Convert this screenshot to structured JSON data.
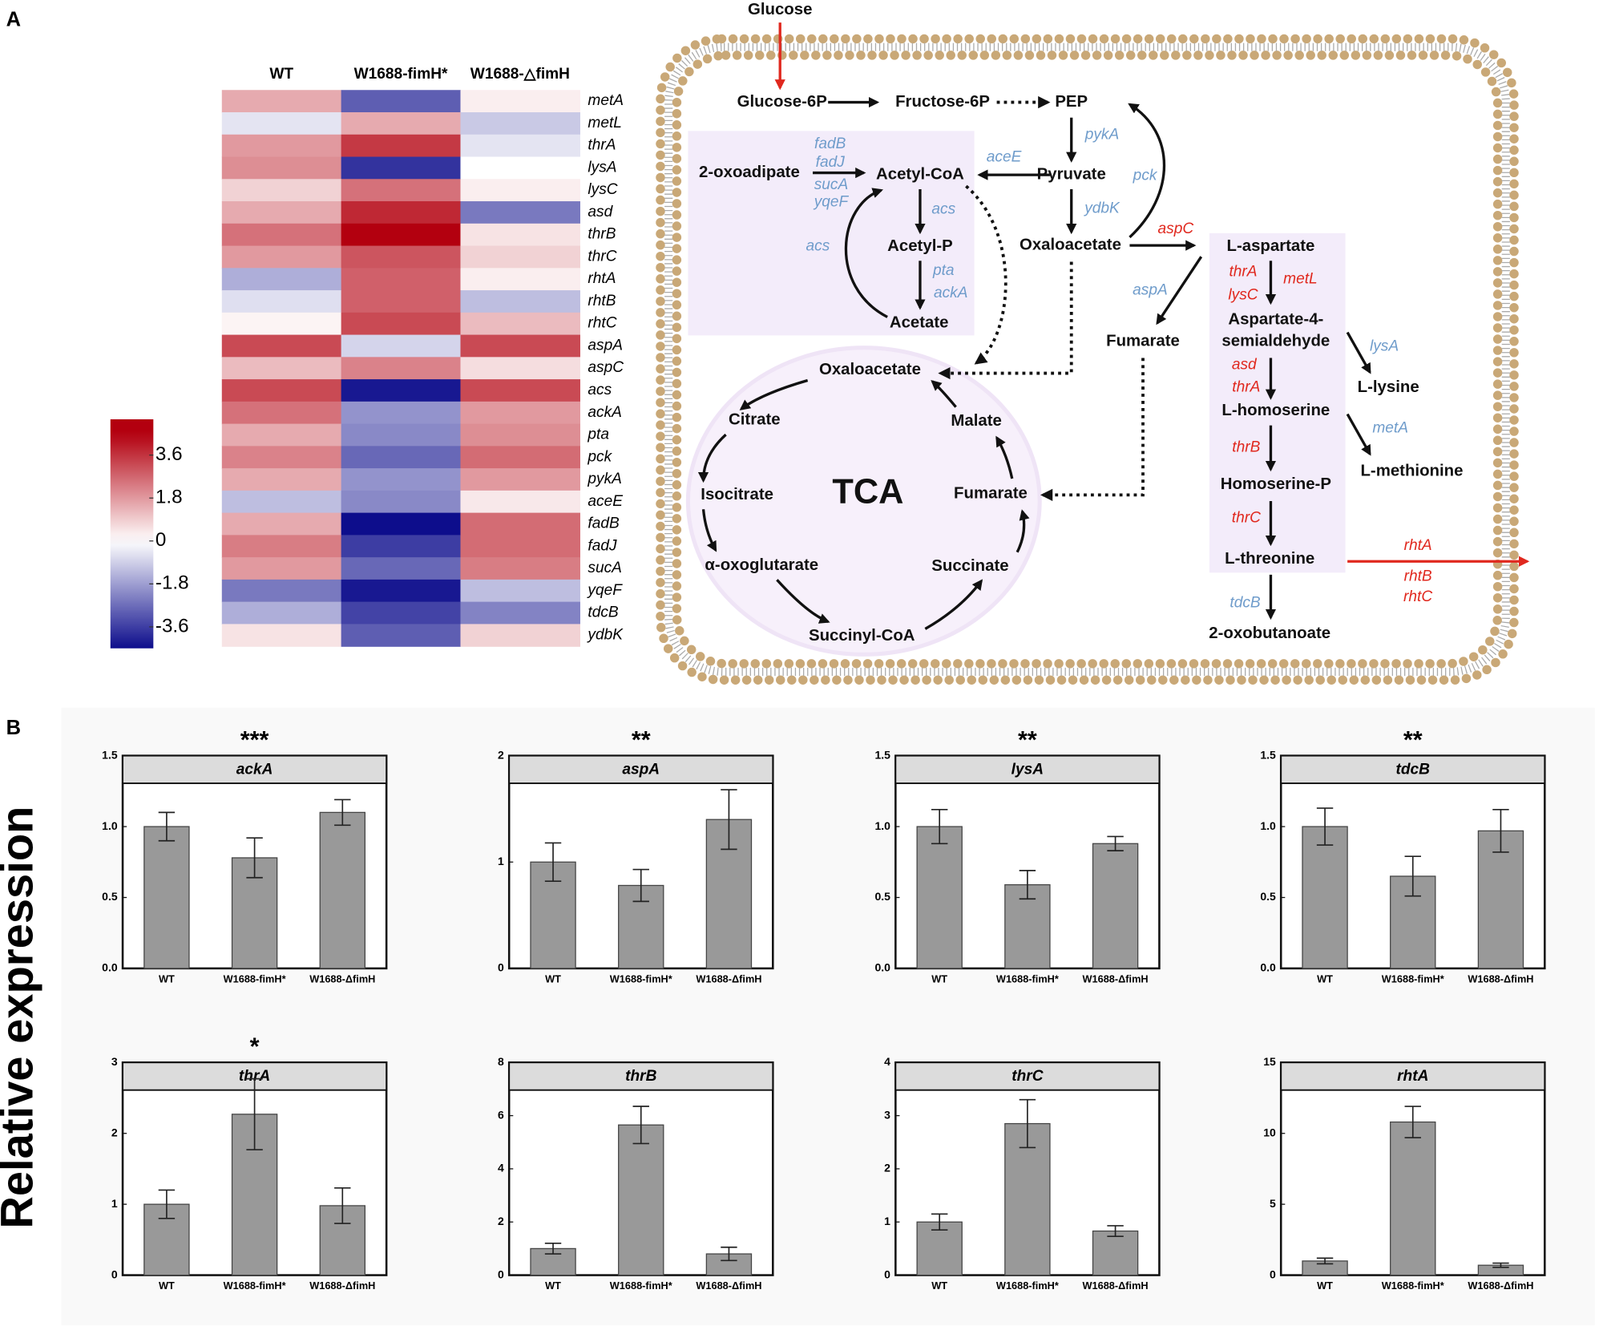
{
  "panels": [
    "A",
    "B"
  ],
  "y_label": "Relative expression",
  "diagram": {
    "tca": "TCA",
    "metabolites": [
      "Glucose",
      "Glucose-6P",
      "Fructose-6P",
      "PEP",
      "2-oxoadipate",
      "Acetyl-CoA",
      "Pyruvate",
      "Acetyl-P",
      "Oxaloacetate",
      "Acetate",
      "L-aspartate",
      "Aspartate-4-",
      "semialdehyde",
      "Fumarate",
      "L-lysine",
      "L-homoserine",
      "L-methionine",
      "Homoserine-P",
      "L-threonine",
      "2-oxobutanoate",
      "Oxaloacetate",
      "Citrate",
      "Malate",
      "Isocitrate",
      "Fumarate",
      "α-oxoglutarate",
      "Succinate",
      "Succinyl-CoA"
    ],
    "genes_down": [
      "fadB",
      "fadJ",
      "sucA",
      "yqeF",
      "aceE",
      "pykA",
      "pck",
      "ydbK",
      "acs",
      "acs",
      "pta",
      "ackA",
      "aspA",
      "lysA",
      "metA",
      "tdcB"
    ],
    "genes_up": [
      "aspC",
      "thrA",
      "metL",
      "lysC",
      "asd",
      "thrA",
      "thrB",
      "thrC",
      "rhtA",
      "rhtB",
      "rhtC"
    ]
  },
  "chart_data": [
    {
      "type": "heatmap",
      "x": [
        "WT",
        "W1688-fimH*",
        "W1688-△fimH"
      ],
      "y": [
        "metA",
        "metL",
        "thrA",
        "lysA",
        "lysC",
        "asd",
        "thrB",
        "thrC",
        "rhtA",
        "rhtB",
        "rhtC",
        "aspA",
        "aspC",
        "acs",
        "ackA",
        "pta",
        "pck",
        "pykA",
        "aceE",
        "fadB",
        "fadJ",
        "sucA",
        "yqeF",
        "tdcB",
        "ydbK"
      ],
      "z": [
        [
          1.5,
          -3.0,
          0.3
        ],
        [
          -0.5,
          1.5,
          -1.0
        ],
        [
          1.8,
          3.5,
          -0.5
        ],
        [
          2.0,
          -3.8,
          0
        ],
        [
          0.8,
          2.5,
          0.3
        ],
        [
          1.5,
          3.8,
          -2.5
        ],
        [
          2.5,
          4.5,
          0.5
        ],
        [
          1.8,
          3.0,
          0.8
        ],
        [
          -1.5,
          2.8,
          0.3
        ],
        [
          -0.6,
          2.8,
          -1.2
        ],
        [
          0.2,
          3.2,
          1.2
        ],
        [
          3.2,
          -0.8,
          3.2
        ],
        [
          1.2,
          2.2,
          0.6
        ],
        [
          3.2,
          -4.3,
          3.2
        ],
        [
          2.5,
          -2.0,
          1.8
        ],
        [
          1.5,
          -2.2,
          2.0
        ],
        [
          2.2,
          -2.8,
          2.6
        ],
        [
          1.5,
          -2.0,
          1.8
        ],
        [
          -1.2,
          -2.2,
          0.4
        ],
        [
          1.5,
          -4.5,
          2.6
        ],
        [
          2.3,
          -3.6,
          2.6
        ],
        [
          1.8,
          -2.8,
          2.3
        ],
        [
          -2.5,
          -4.3,
          -1.2
        ],
        [
          -1.5,
          -3.5,
          -2.3
        ],
        [
          0.5,
          -3.0,
          0.8
        ]
      ],
      "zlim": [
        -4.5,
        5.1
      ],
      "zticks": [
        3.6,
        1.8,
        0,
        -1.8,
        -3.6
      ],
      "colors": [
        "#0d0d8c",
        "#ffffff",
        "#b3000f"
      ]
    },
    {
      "type": "bar",
      "title": "ackA",
      "significance": "***",
      "categories": [
        "WT",
        "W1688-fimH*",
        "W1688-ΔfimH"
      ],
      "values": [
        1.0,
        0.78,
        1.1
      ],
      "errors": [
        0.1,
        0.14,
        0.09
      ],
      "ylim": [
        0,
        1.5
      ],
      "yticks": [
        {
          "value": 0,
          "label": "0.0"
        },
        0.5,
        {
          "value": 1,
          "label": "1.0"
        },
        1.5
      ],
      "color": "#999999"
    },
    {
      "type": "bar",
      "title": "aspA",
      "significance": "**",
      "categories": [
        "WT",
        "W1688-fimH*",
        "W1688-ΔfimH"
      ],
      "values": [
        1.0,
        0.78,
        1.4
      ],
      "errors": [
        0.18,
        0.15,
        0.28
      ],
      "ylim": [
        0,
        2
      ],
      "yticks": [
        0,
        1,
        2
      ],
      "color": "#999999"
    },
    {
      "type": "bar",
      "title": "lysA",
      "significance": "**",
      "categories": [
        "WT",
        "W1688-fimH*",
        "W1688-ΔfimH"
      ],
      "values": [
        1.0,
        0.59,
        0.88
      ],
      "errors": [
        0.12,
        0.1,
        0.05
      ],
      "ylim": [
        0,
        1.5
      ],
      "yticks": [
        {
          "value": 0,
          "label": "0.0"
        },
        0.5,
        {
          "value": 1,
          "label": "1.0"
        },
        1.5
      ],
      "color": "#999999"
    },
    {
      "type": "bar",
      "title": "tdcB",
      "significance": "**",
      "categories": [
        "WT",
        "W1688-fimH*",
        "W1688-ΔfimH"
      ],
      "values": [
        1.0,
        0.65,
        0.97
      ],
      "errors": [
        0.13,
        0.14,
        0.15
      ],
      "ylim": [
        0,
        1.5
      ],
      "yticks": [
        {
          "value": 0,
          "label": "0.0"
        },
        0.5,
        {
          "value": 1,
          "label": "1.0"
        },
        1.5
      ],
      "color": "#999999"
    },
    {
      "type": "bar",
      "title": "thrA",
      "significance": "*",
      "categories": [
        "WT",
        "W1688-fimH*",
        "W1688-ΔfimH"
      ],
      "values": [
        1.0,
        2.27,
        0.98
      ],
      "errors": [
        0.2,
        0.5,
        0.25
      ],
      "ylim": [
        0,
        3
      ],
      "yticks": [
        0,
        1,
        2,
        3
      ],
      "color": "#999999"
    },
    {
      "type": "bar",
      "title": "thrB",
      "categories": [
        "WT",
        "W1688-fimH*",
        "W1688-ΔfimH"
      ],
      "values": [
        1.0,
        5.65,
        0.8
      ],
      "errors": [
        0.2,
        0.7,
        0.25
      ],
      "ylim": [
        0,
        8
      ],
      "yticks": [
        0,
        2,
        4,
        6,
        8
      ],
      "color": "#999999"
    },
    {
      "type": "bar",
      "title": "thrC",
      "categories": [
        "WT",
        "W1688-fimH*",
        "W1688-ΔfimH"
      ],
      "values": [
        1.0,
        2.85,
        0.83
      ],
      "errors": [
        0.15,
        0.45,
        0.1
      ],
      "ylim": [
        0,
        4
      ],
      "yticks": [
        0,
        1,
        2,
        3,
        4
      ],
      "color": "#999999"
    },
    {
      "type": "bar",
      "title": "rhtA",
      "categories": [
        "WT",
        "W1688-fimH*",
        "W1688-ΔfimH"
      ],
      "values": [
        1.0,
        10.8,
        0.7
      ],
      "errors": [
        0.2,
        1.1,
        0.15
      ],
      "ylim": [
        0,
        15
      ],
      "yticks": [
        0,
        5,
        10,
        15
      ],
      "color": "#999999"
    }
  ]
}
